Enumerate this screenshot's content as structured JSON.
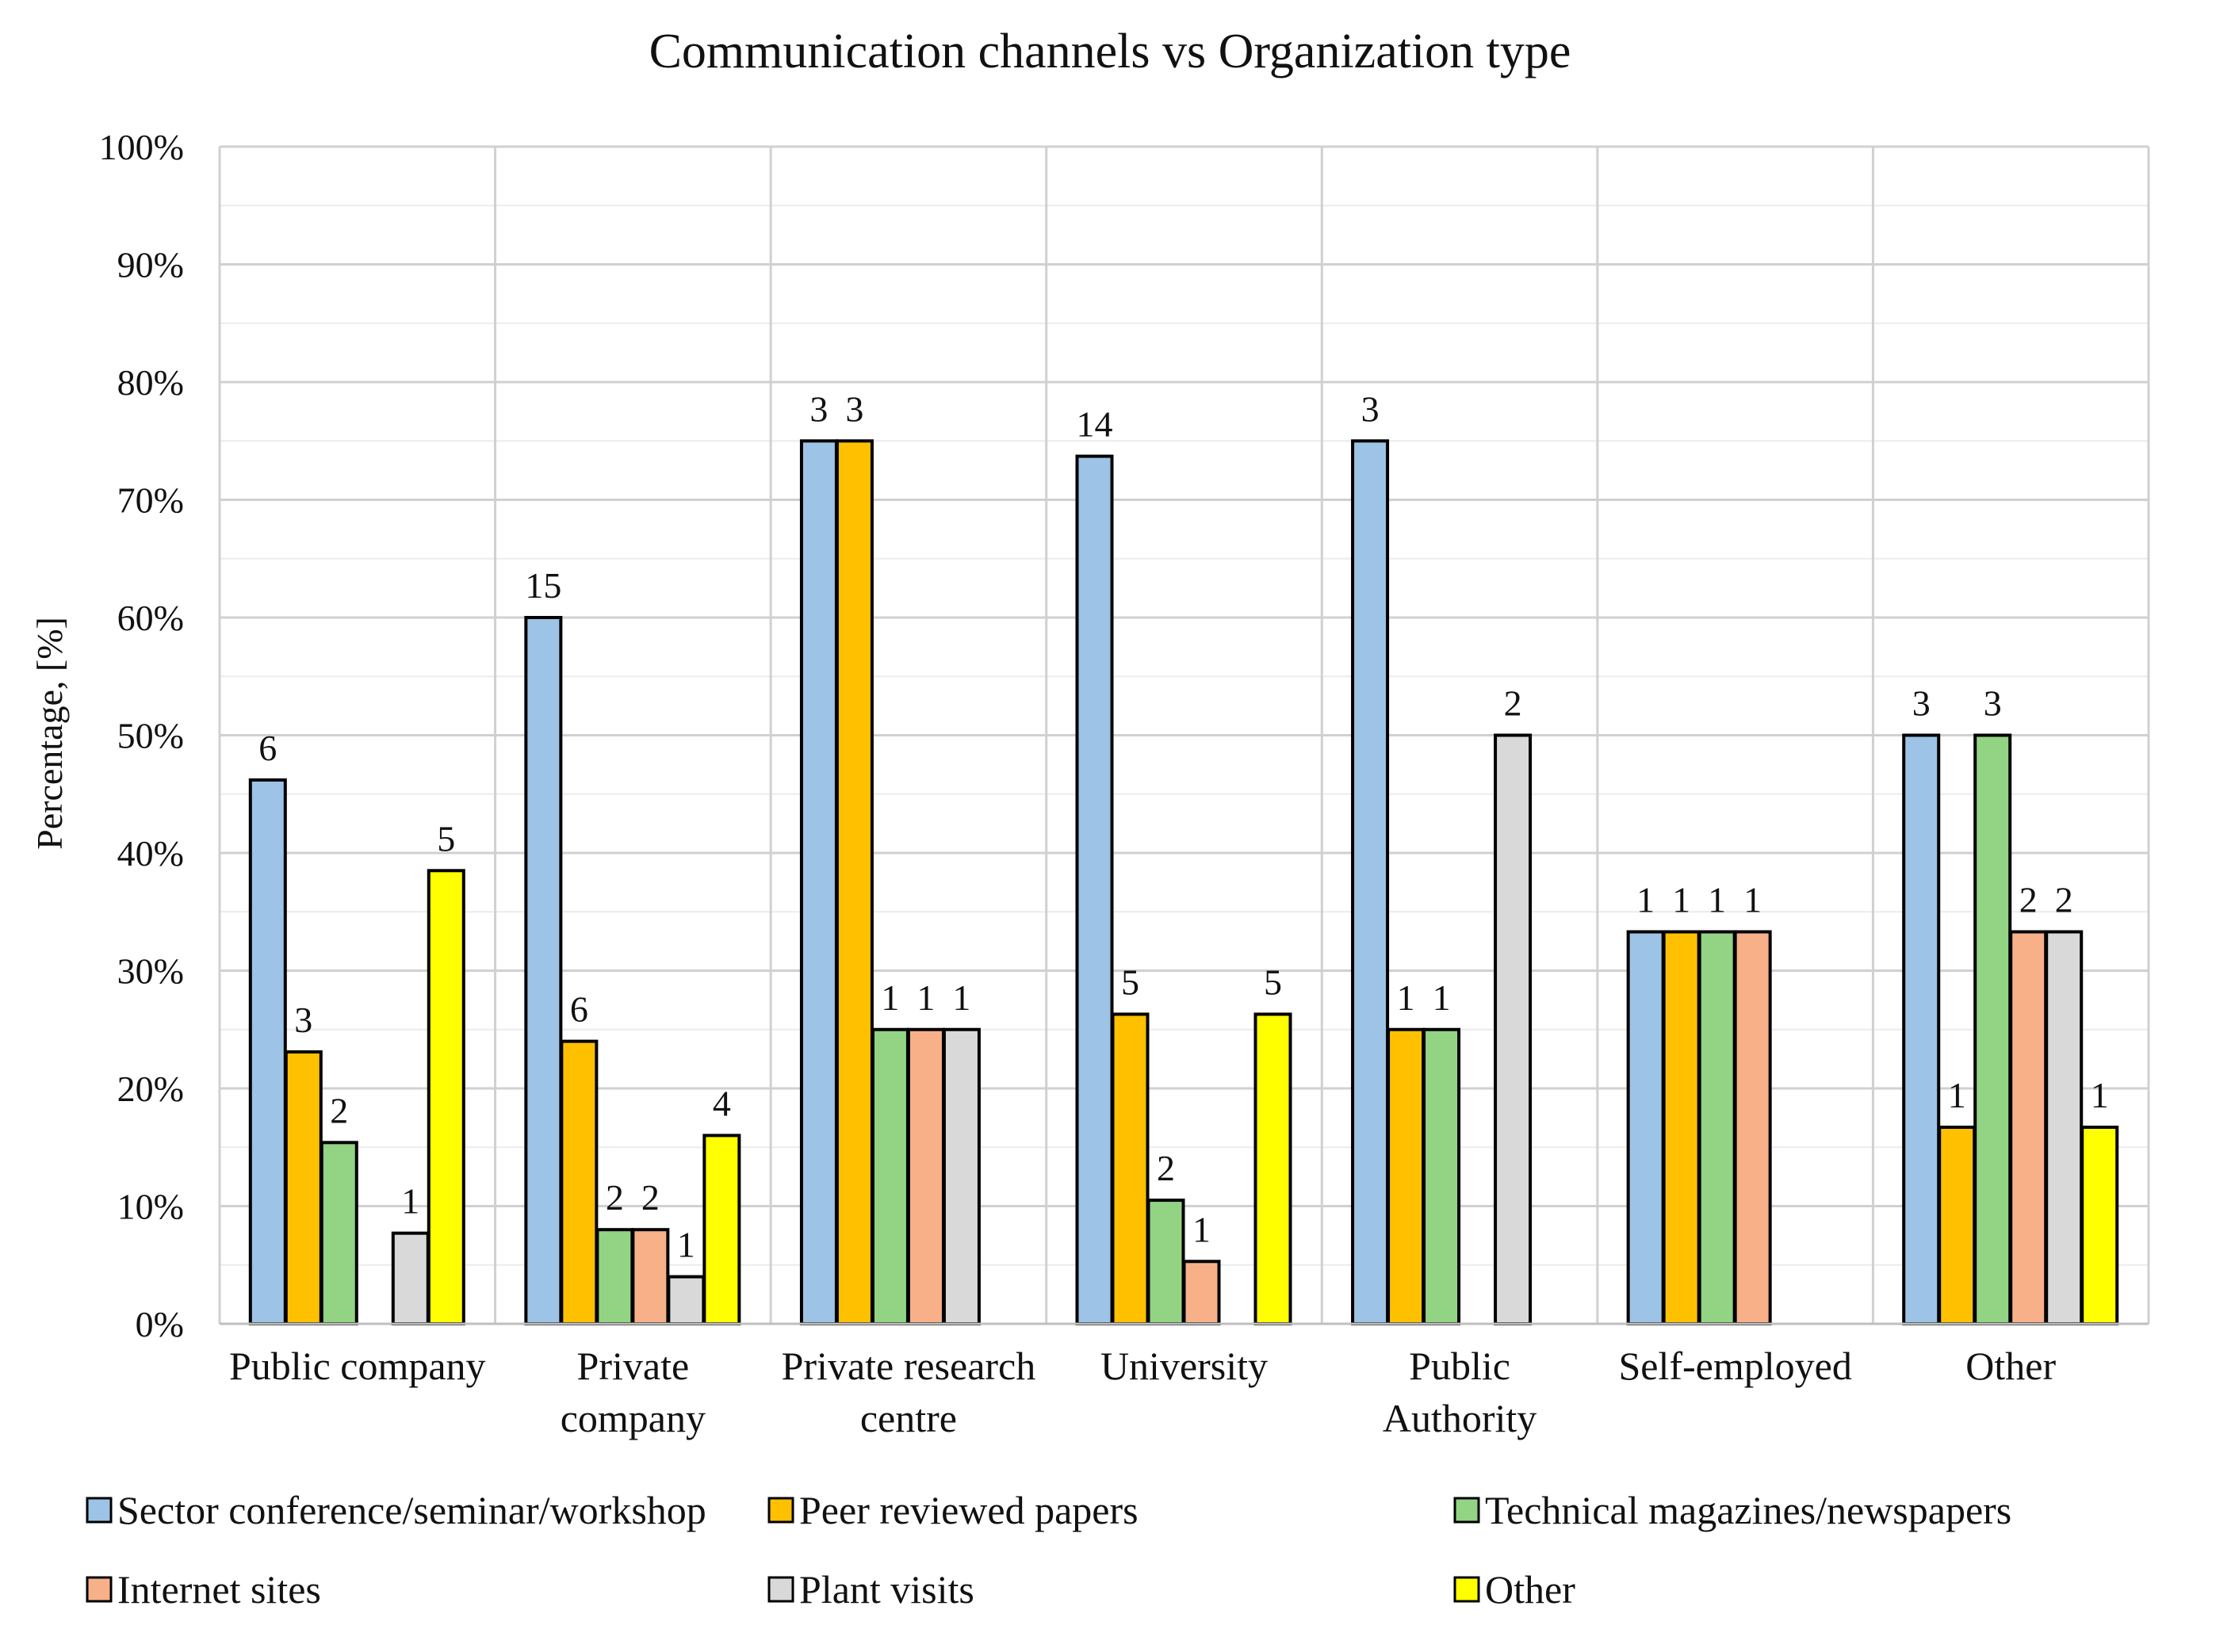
{
  "chart_data": {
    "type": "bar",
    "title": "Communication  channels vs Organization type",
    "xlabel": "",
    "ylabel": "Percentage, [%]",
    "ylim": [
      0,
      100
    ],
    "yticks": [
      "0%",
      "10%",
      "20%",
      "30%",
      "40%",
      "50%",
      "60%",
      "70%",
      "80%",
      "90%",
      "100%"
    ],
    "grid": true,
    "legend_position": "bottom",
    "categories": [
      [
        "Public company"
      ],
      [
        "Private",
        "company"
      ],
      [
        "Private research",
        "centre"
      ],
      [
        "University"
      ],
      [
        "Public",
        "Authority"
      ],
      [
        "Self-employed"
      ],
      [
        "Other"
      ]
    ],
    "series": [
      {
        "name": "Sector conference/seminar/workshop",
        "color": "#9DC3E6",
        "values": [
          46.2,
          60.0,
          75.0,
          73.7,
          75.0,
          33.3,
          50.0
        ],
        "labels": [
          "6",
          "15",
          "3",
          "14",
          "3",
          "1",
          "3"
        ]
      },
      {
        "name": "Peer reviewed papers",
        "color": "#FFC000",
        "values": [
          23.1,
          24.0,
          75.0,
          26.3,
          25.0,
          33.3,
          16.7
        ],
        "labels": [
          "3",
          "6",
          "3",
          "5",
          "1",
          "1",
          "1"
        ]
      },
      {
        "name": "Technical magazines/newspapers",
        "color": "#92D384",
        "values": [
          15.4,
          8.0,
          25.0,
          10.5,
          25.0,
          33.3,
          50.0
        ],
        "labels": [
          "2",
          "2",
          "1",
          "2",
          "1",
          "1",
          "3"
        ]
      },
      {
        "name": "Internet sites",
        "color": "#F8B089",
        "values": [
          0,
          8.0,
          25.0,
          5.3,
          0,
          33.3,
          33.3
        ],
        "labels": [
          "",
          "2",
          "1",
          "1",
          "",
          "1",
          "2"
        ]
      },
      {
        "name": "Plant visits",
        "color": "#D9D9D9",
        "values": [
          7.7,
          4.0,
          25.0,
          0,
          50.0,
          0,
          33.3
        ],
        "labels": [
          "1",
          "1",
          "1",
          "",
          "2",
          "",
          "2"
        ]
      },
      {
        "name": "Other",
        "color": "#FFFF00",
        "values": [
          38.5,
          16.0,
          0,
          26.3,
          0,
          0,
          16.7
        ],
        "labels": [
          "5",
          "4",
          "",
          "5",
          "",
          "",
          "1"
        ]
      }
    ]
  }
}
